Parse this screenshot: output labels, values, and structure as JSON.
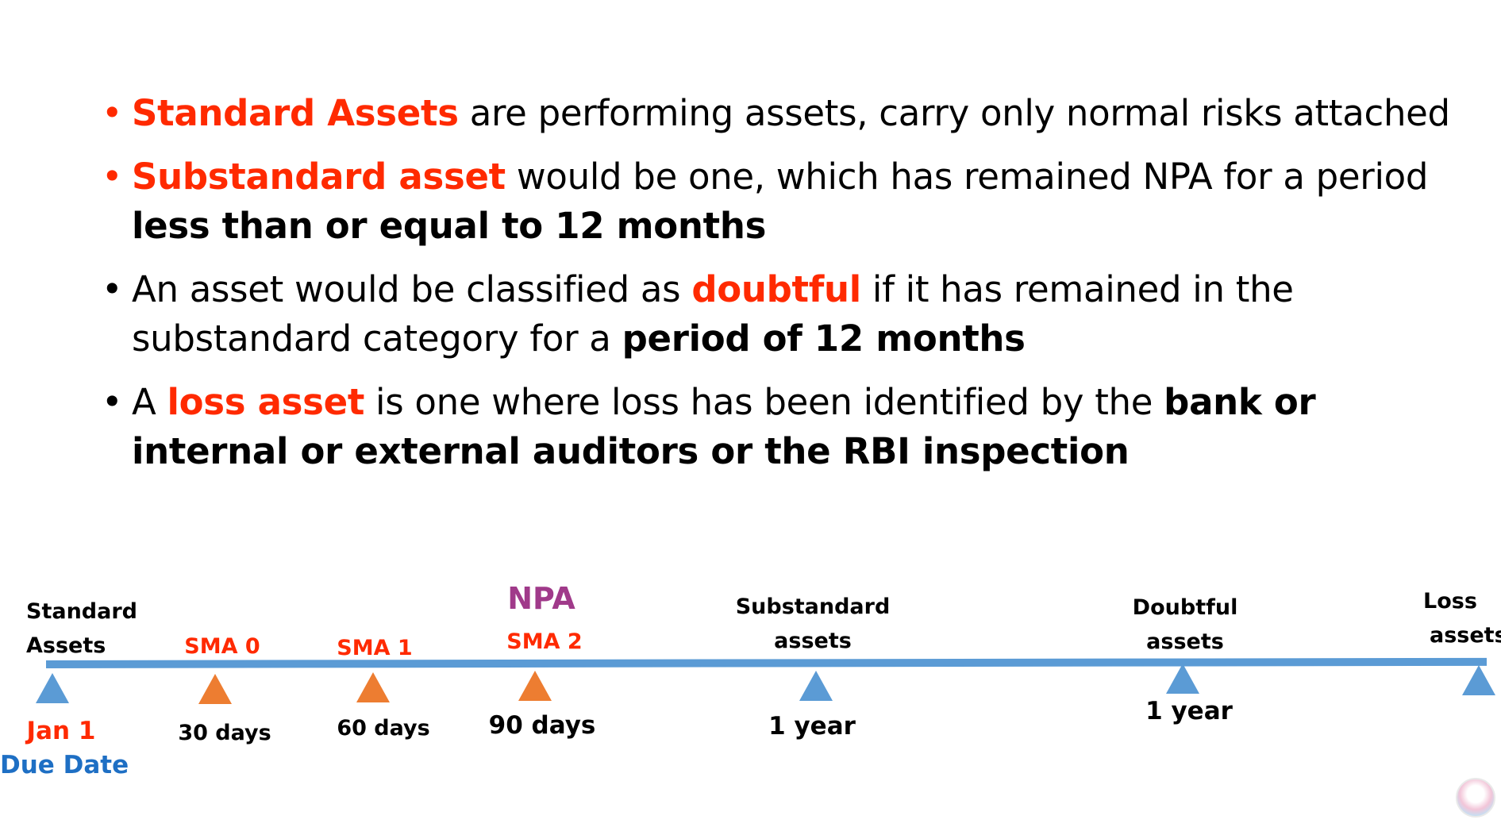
{
  "bullets": [
    {
      "seg1_red": "Standard Assets",
      "seg2": " are performing assets, carry only normal risks attached"
    },
    {
      "seg1_red": "Substandard asset",
      "seg2": " would be one, which has remained NPA for a period ",
      "seg3_bold": "less than or equal to 12 months"
    },
    {
      "seg1": "An asset would be classified as ",
      "seg2_red": "doubtful",
      "seg3": " if it has remained in the substandard category for a ",
      "seg4_bold": "period of 12 months"
    },
    {
      "seg1": "A ",
      "seg2_red": "loss asset",
      "seg3": " is one where loss has been identified by the ",
      "seg4_bold": "bank or internal or external auditors or the RBI inspection"
    }
  ],
  "timeline": {
    "standard_line1": "Standard",
    "standard_line2": "Assets",
    "sma0": "SMA 0",
    "sma1": "SMA 1",
    "npa": "NPA",
    "sma2": "SMA 2",
    "substandard_line1": "Substandard",
    "substandard_line2": "assets",
    "doubtful_line1": "Doubtful",
    "doubtful_line2": "assets",
    "loss_line1": "Loss",
    "loss_line2": "assets",
    "jan1": "Jan 1",
    "due_date": "Due Date",
    "d30": "30 days",
    "d60": "60 days",
    "d90": "90 days",
    "year1a": "1 year",
    "year1b": "1 year"
  },
  "colors": {
    "accent_red": "#ff2a00",
    "line_blue": "#5b9bd5",
    "marker_orange": "#ed7d31",
    "npa_purple": "#a03a8a",
    "due_date_blue": "#1e6fc4"
  }
}
